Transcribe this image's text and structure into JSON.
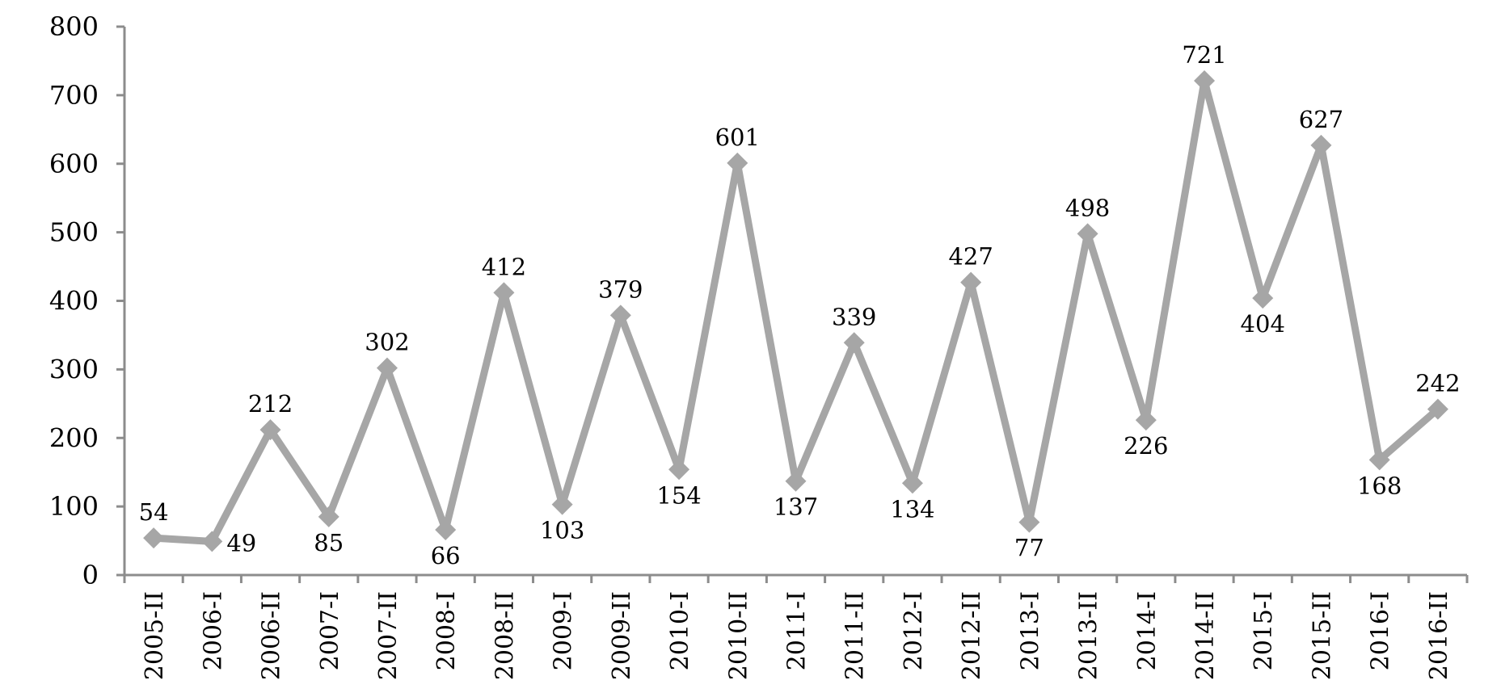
{
  "chart_data": {
    "type": "line",
    "title": "",
    "xlabel": "",
    "ylabel": "",
    "ylim": [
      0,
      800
    ],
    "yticks": [
      0,
      100,
      200,
      300,
      400,
      500,
      600,
      700,
      800
    ],
    "grid": false,
    "legend": "none",
    "marker": "diamond",
    "series_color": "#a6a6a6",
    "axis_color": "#8c8c8c",
    "categories": [
      "2005-II",
      "2006-I",
      "2006-II",
      "2007-I",
      "2007-II",
      "2008-I",
      "2008-II",
      "2009-I",
      "2009-II",
      "2010-I",
      "2010-II",
      "2011-I",
      "2011-II",
      "2012-I",
      "2012-II",
      "2013-I",
      "2013-II",
      "2014-I",
      "2014-II",
      "2015-I",
      "2015-II",
      "2016-I",
      "2016-II"
    ],
    "series": [
      {
        "values": [
          54,
          49,
          212,
          85,
          302,
          66,
          412,
          103,
          379,
          154,
          601,
          137,
          339,
          134,
          427,
          77,
          498,
          226,
          721,
          404,
          627,
          168,
          242
        ],
        "label_positions": [
          "above",
          "right",
          "above",
          "below",
          "above",
          "below",
          "above",
          "below",
          "above",
          "below",
          "above",
          "below",
          "above",
          "below",
          "above",
          "below",
          "above",
          "below",
          "above",
          "below",
          "above",
          "below",
          "above"
        ]
      }
    ]
  }
}
